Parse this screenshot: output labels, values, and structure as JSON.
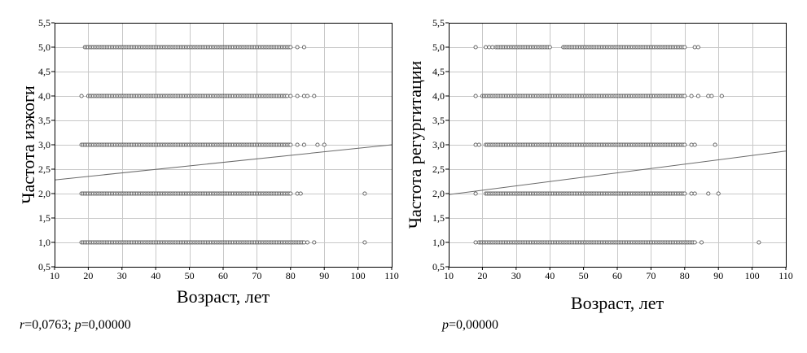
{
  "chart_data": [
    {
      "type": "scatter",
      "xlabel": "Возраст, лет",
      "ylabel": "Частота изжоги",
      "xlim": [
        10,
        110
      ],
      "ylim": [
        0.5,
        5.5
      ],
      "xticks": [
        "10",
        "20",
        "30",
        "40",
        "50",
        "60",
        "70",
        "80",
        "90",
        "100",
        "110"
      ],
      "yticks": [
        "0,5",
        "1,0",
        "1,5",
        "2,0",
        "2,5",
        "3,0",
        "3,5",
        "4,0",
        "4,5",
        "5,0",
        "5,5"
      ],
      "grid": true,
      "annotation": {
        "r_label": "r",
        "r_value": "=0,0763; ",
        "p_label": "p",
        "p_value": "=0,00000"
      },
      "series": [
        {
          "y": 1.0,
          "x_ranges": [
            [
              18,
              84
            ]
          ],
          "x_extra": [
            85,
            87,
            102
          ]
        },
        {
          "y": 2.0,
          "x_ranges": [
            [
              18,
              80
            ]
          ],
          "x_extra": [
            82,
            83,
            102
          ]
        },
        {
          "y": 3.0,
          "x_ranges": [
            [
              18,
              80
            ]
          ],
          "x_extra": [
            82,
            84,
            88,
            90
          ]
        },
        {
          "y": 4.0,
          "x_ranges": [
            [
              20,
              79
            ]
          ],
          "x_extra": [
            18,
            80,
            82,
            84,
            85,
            87
          ]
        },
        {
          "y": 5.0,
          "x_ranges": [
            [
              19,
              80
            ]
          ],
          "x_extra": [
            82,
            84
          ]
        }
      ],
      "trend": {
        "x": [
          10,
          110
        ],
        "y": [
          2.28,
          3.0
        ]
      },
      "colors": {
        "points": "#555555",
        "trend": "#6a6a6a",
        "grid": "#c8c8c8"
      }
    },
    {
      "type": "scatter",
      "xlabel": "Возраст, лет",
      "ylabel": "Частота регургитации",
      "xlim": [
        10,
        110
      ],
      "ylim": [
        0.5,
        5.5
      ],
      "xticks": [
        "10",
        "20",
        "30",
        "40",
        "50",
        "60",
        "70",
        "80",
        "90",
        "100",
        "110"
      ],
      "yticks": [
        "0,5",
        "1,0",
        "1,5",
        "2,0",
        "2,5",
        "3,0",
        "3,5",
        "4,0",
        "4,5",
        "5,0",
        "5,5"
      ],
      "grid": true,
      "annotation": {
        "p_label": "p",
        "p_value": "=0,00000"
      },
      "series": [
        {
          "y": 1.0,
          "x_ranges": [
            [
              19,
              83
            ]
          ],
          "x_extra": [
            18,
            85,
            102
          ]
        },
        {
          "y": 2.0,
          "x_ranges": [
            [
              21,
              80
            ]
          ],
          "x_extra": [
            18,
            82,
            83,
            87,
            90
          ]
        },
        {
          "y": 3.0,
          "x_ranges": [
            [
              21,
              80
            ]
          ],
          "x_extra": [
            18,
            19,
            82,
            83,
            89
          ]
        },
        {
          "y": 4.0,
          "x_ranges": [
            [
              20,
              80
            ]
          ],
          "x_extra": [
            18,
            82,
            84,
            87,
            88,
            91
          ]
        },
        {
          "y": 5.0,
          "x_ranges": [
            [
              24,
              40
            ],
            [
              44,
              80
            ]
          ],
          "x_extra": [
            18,
            21,
            22,
            23,
            83,
            84
          ]
        }
      ],
      "trend": {
        "x": [
          10,
          110
        ],
        "y": [
          1.98,
          2.87
        ]
      },
      "colors": {
        "points": "#555555",
        "trend": "#6a6a6a",
        "grid": "#c8c8c8"
      }
    }
  ]
}
